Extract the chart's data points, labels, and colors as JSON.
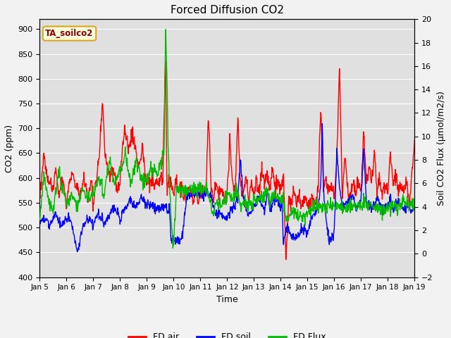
{
  "title": "Forced Diffusion CO2",
  "xlabel": "Time",
  "ylabel_left": "CO2 (ppm)",
  "ylabel_right": "Soil CO2 Flux (μmol/m2/s)",
  "annotation": "TA_soilco2",
  "ylim_left": [
    400,
    920
  ],
  "ylim_right": [
    -2,
    20
  ],
  "yticks_left": [
    400,
    450,
    500,
    550,
    600,
    650,
    700,
    750,
    800,
    850,
    900
  ],
  "yticks_right": [
    -2,
    0,
    2,
    4,
    6,
    8,
    10,
    12,
    14,
    16,
    18,
    20
  ],
  "xtick_labels": [
    "Jan 5",
    "Jan 6",
    "Jan 7",
    "Jan 8",
    "Jan 9",
    "Jan 10",
    "Jan 11",
    "Jan 12",
    "Jan 13",
    "Jan 14",
    "Jan 15",
    "Jan 16",
    "Jan 17",
    "Jan 18",
    "Jan 19"
  ],
  "plot_bg": "#e0e0e0",
  "fig_bg": "#f2f2f2",
  "grid_color": "#ffffff",
  "line_colors": {
    "fd_air": "#ff0000",
    "fd_soil": "#0000ff",
    "fd_flux": "#00bb00"
  },
  "line_width": 1.0,
  "legend_labels": [
    "FD air",
    "FD soil",
    "FD Flux"
  ]
}
